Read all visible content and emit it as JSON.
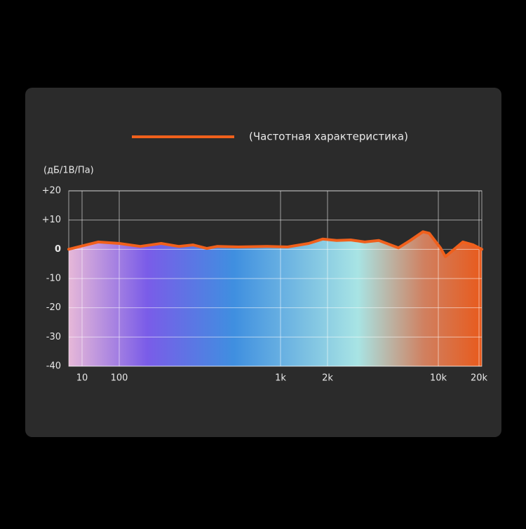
{
  "chart_data": {
    "type": "area",
    "legend": "(Частотная характеристика)",
    "ylabel": "(дБ/1В/Па)",
    "x": [
      4.4,
      27,
      100,
      135,
      182,
      234,
      286,
      349,
      406,
      548,
      819,
      1110,
      1514,
      1860,
      2284,
      2800,
      3435,
      4210,
      5600,
      6650,
      8000,
      8750,
      10360,
      11270,
      13480,
      15200,
      18150,
      21000
    ],
    "series": [
      {
        "name": "(Частотная характеристика)",
        "color": "#f0601c",
        "values": [
          0,
          2.5,
          2,
          1,
          2,
          1,
          1.5,
          0.3,
          1,
          0.8,
          1,
          0.8,
          2,
          3.5,
          3,
          3.2,
          2.5,
          3,
          0.5,
          3,
          6,
          5.5,
          0.5,
          -2.5,
          0.5,
          2.5,
          1.5,
          0
        ]
      }
    ],
    "xscale": "log",
    "xlim": [
      4.4,
      21000
    ],
    "xticks": [
      10,
      100,
      {
        "value": 1000,
        "label": "1k"
      },
      {
        "value": 2000,
        "label": "2k"
      },
      {
        "value": 10000,
        "label": "10k"
      },
      {
        "value": 20000,
        "label": "20k"
      }
    ],
    "ylim": [
      -40,
      20
    ],
    "yticks": [
      {
        "value": 20,
        "label": "+20"
      },
      {
        "value": 10,
        "label": "+10"
      },
      0,
      -10,
      -20,
      -30,
      -40
    ],
    "grid": true
  }
}
